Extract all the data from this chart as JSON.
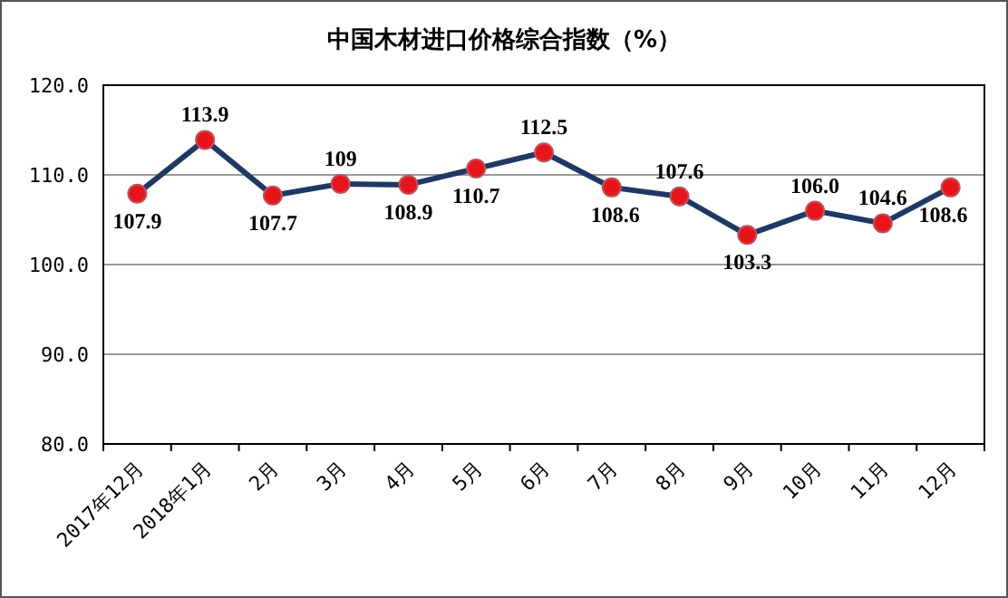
{
  "chart_data": {
    "type": "line",
    "title": "中国木材进口价格综合指数（%）",
    "categories": [
      "2017年12月",
      "2018年1月",
      "2月",
      "3月",
      "4月",
      "5月",
      "6月",
      "7月",
      "8月",
      "9月",
      "10月",
      "11月",
      "12月"
    ],
    "series": [
      {
        "color": "#1f3864",
        "values": [
          107.9,
          113.9,
          107.7,
          109,
          108.9,
          110.7,
          112.5,
          108.6,
          107.6,
          103.3,
          106.0,
          104.6,
          108.6
        ],
        "value_labels": [
          "107.9",
          "113.9",
          "107.7",
          "109",
          "108.9",
          "110.7",
          "112.5",
          "108.6",
          "107.6",
          "103.3",
          "106.0",
          "104.6",
          "108.6"
        ]
      }
    ],
    "ylim": [
      80,
      120
    ],
    "yticks": [
      {
        "value": 80,
        "label": "80.0"
      },
      {
        "value": 90,
        "label": "90.0"
      },
      {
        "value": 100,
        "label": "100.0"
      },
      {
        "value": 110,
        "label": "110.0"
      },
      {
        "value": 120,
        "label": "120.0"
      }
    ],
    "grid": "y",
    "marker": "circle",
    "line_style": "solid"
  }
}
